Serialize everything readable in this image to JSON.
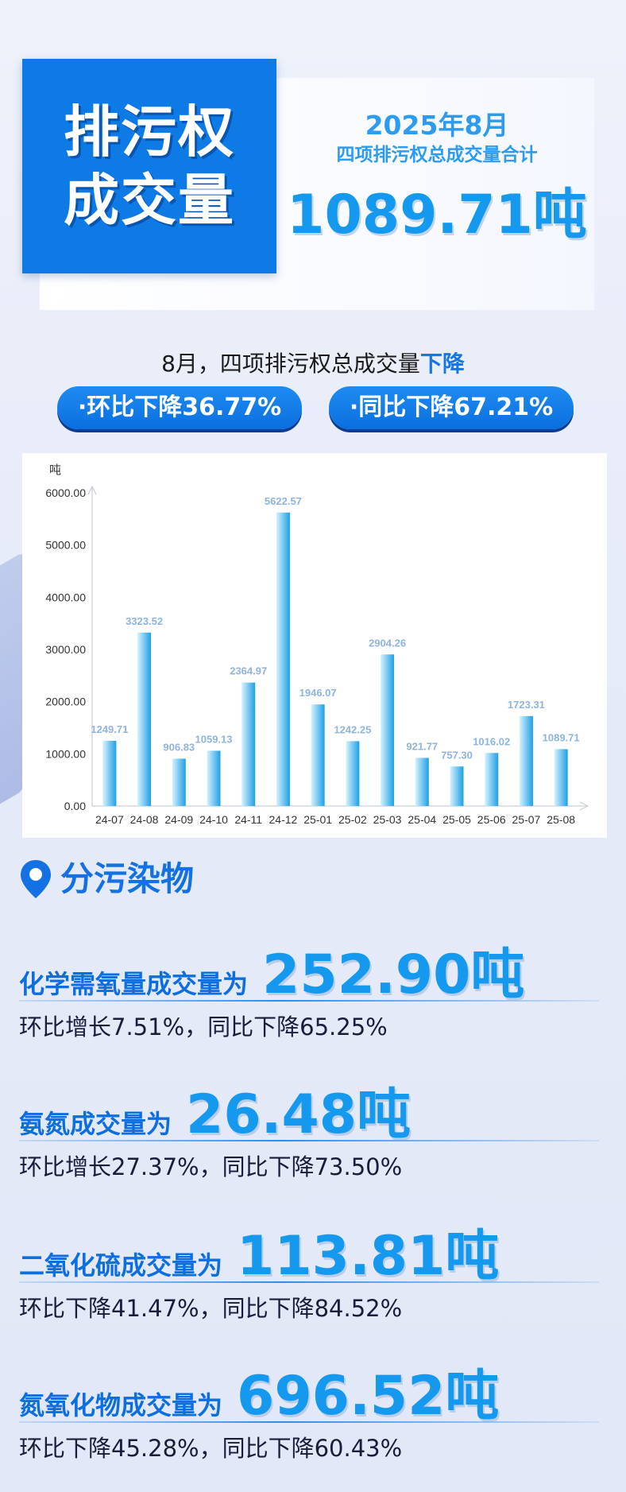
{
  "hero": {
    "title_line1": "排污权",
    "title_line2": "成交量",
    "month": "2025年8月",
    "subtitle": "四项排污权总成交量合计",
    "total": "1089.71吨"
  },
  "headline": {
    "prefix": "8月，四项排污权总成交量",
    "trend": "下降"
  },
  "badges": {
    "mom": "·环比下降36.77%",
    "yoy": "·同比下降67.21%"
  },
  "colors": {
    "accent": "#1471e3",
    "value_blue": "#1499ef",
    "bar_light": "#d6f2fd",
    "bar_dark": "#1e9fe6",
    "data_label": "#8fb4dd"
  },
  "chart_data": {
    "type": "bar",
    "ylabel": "吨",
    "ylim": [
      0,
      6000
    ],
    "yticks": [
      "0.00",
      "1000.00",
      "2000.00",
      "3000.00",
      "4000.00",
      "5000.00",
      "6000.00"
    ],
    "categories": [
      "24-07",
      "24-08",
      "24-09",
      "24-10",
      "24-11",
      "24-12",
      "25-01",
      "25-02",
      "25-03",
      "25-04",
      "25-05",
      "25-06",
      "25-07",
      "25-08"
    ],
    "values": [
      1249.71,
      3323.52,
      906.83,
      1059.13,
      2364.97,
      5622.57,
      1946.07,
      1242.25,
      2904.26,
      921.77,
      757.3,
      1016.02,
      1723.31,
      1089.71
    ],
    "value_labels": [
      "1249.71",
      "3323.52",
      "906.83",
      "1059.13",
      "2364.97",
      "5622.57",
      "1946.07",
      "1242.25",
      "2904.26",
      "921.77",
      "757.30",
      "1016.02",
      "1723.31",
      "1089.71"
    ],
    "grid": false,
    "legend": "none"
  },
  "section": {
    "title": "分污染物",
    "icon": "location-pin-icon"
  },
  "pollutants": [
    {
      "label": "化学需氧量成交量为",
      "value": "252.90吨",
      "change": "环比增长7.51%，同比下降65.25%"
    },
    {
      "label": "氨氮成交量为",
      "value": "26.48吨",
      "change": "环比增长27.37%，同比下降73.50%"
    },
    {
      "label": "二氧化硫成交量为",
      "value": "113.81吨",
      "change": "环比下降41.47%，同比下降84.52%"
    },
    {
      "label": "氮氧化物成交量为",
      "value": "696.52吨",
      "change": "环比下降45.28%，同比下降60.43%"
    }
  ]
}
